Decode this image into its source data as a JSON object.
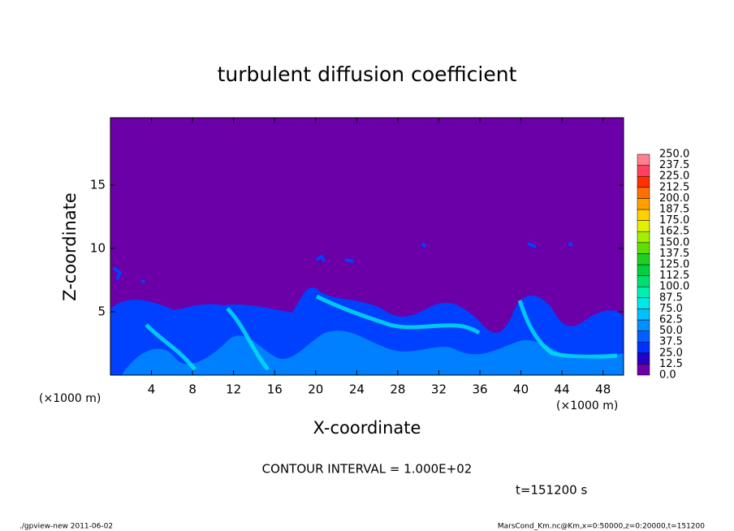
{
  "chart_data": {
    "type": "heatmap",
    "title": "turbulent diffusion coefficient",
    "x_label": "X-coordinate",
    "y_label": "Z-coordinate",
    "x_unit": "(×1000 m)",
    "xlim": [
      0,
      50
    ],
    "xticks": [
      4,
      8,
      12,
      16,
      20,
      24,
      28,
      32,
      36,
      40,
      44,
      48
    ],
    "ylim": [
      0,
      20
    ],
    "yticks": [
      5,
      10,
      15
    ],
    "colorbar": {
      "levels": [
        {
          "value": 0,
          "label": "0.0"
        },
        12.5,
        {
          "value": 25,
          "label": "25.0"
        },
        37.5,
        {
          "value": 50,
          "label": "50.0"
        },
        62.5,
        {
          "value": 75,
          "label": "75.0"
        },
        87.5,
        {
          "value": 100,
          "label": "100.0"
        },
        112.5,
        {
          "value": 125,
          "label": "125.0"
        },
        137.5,
        {
          "value": 150,
          "label": "150.0"
        },
        162.5,
        {
          "value": 175,
          "label": "175.0"
        },
        187.5,
        {
          "value": 200,
          "label": "200.0"
        },
        212.5,
        {
          "value": 225,
          "label": "225.0"
        },
        237.5,
        {
          "value": 250,
          "label": "250.0"
        }
      ],
      "colors": [
        "#6c00a8",
        "#2400c8",
        "#0030ff",
        "#0060ff",
        "#0090ff",
        "#00c0ff",
        "#00e8e8",
        "#00f0b0",
        "#00e070",
        "#00d040",
        "#20d020",
        "#60e000",
        "#a0f000",
        "#e0f000",
        "#ffd000",
        "#ffa000",
        "#ff7000",
        "#ff3000",
        "#ff4060",
        "#ff8090"
      ]
    },
    "annotations": [
      "CONTOUR INTERVAL = 1.000E+02",
      "t=151200 s"
    ],
    "footer_left": "./gpview-new   2011-06-02",
    "footer_right": "MarsCond_Km.nc@Km,x=0:50000,z=0:20000,t=151200"
  }
}
